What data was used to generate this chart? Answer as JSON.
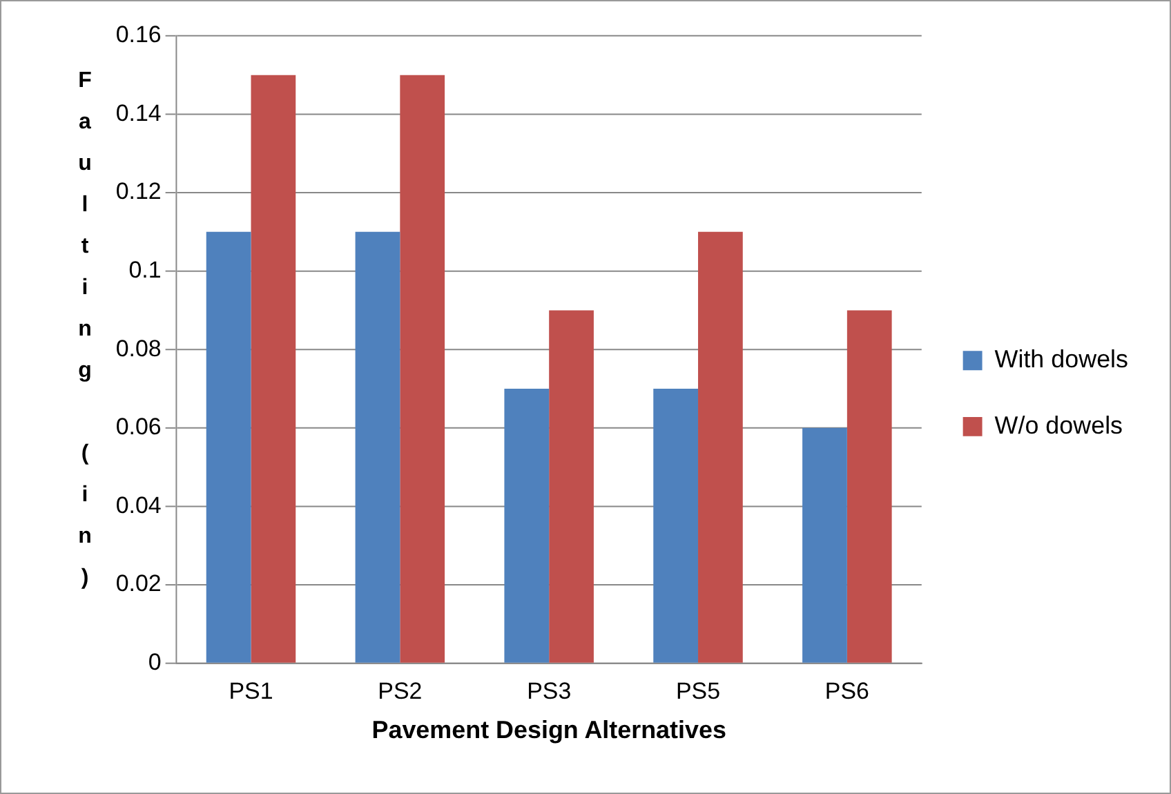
{
  "chart_data": {
    "type": "bar",
    "xlabel": "Pavement Design Alternatives",
    "ylabel": "Faulting (in)",
    "categories": [
      "PS1",
      "PS2",
      "PS3",
      "PS5",
      "PS6"
    ],
    "series": [
      {
        "name": "With dowels",
        "color": "#4f81bd",
        "values": [
          0.11,
          0.11,
          0.07,
          0.07,
          0.06
        ]
      },
      {
        "name": "W/o dowels",
        "color": "#c0504d",
        "values": [
          0.15,
          0.15,
          0.09,
          0.11,
          0.09
        ]
      }
    ],
    "ylim": [
      0,
      0.16
    ],
    "yticks": [
      0,
      0.02,
      0.04,
      0.06,
      0.08,
      0.1,
      0.12,
      0.14,
      0.16
    ],
    "grid": "y",
    "legend": "right"
  }
}
